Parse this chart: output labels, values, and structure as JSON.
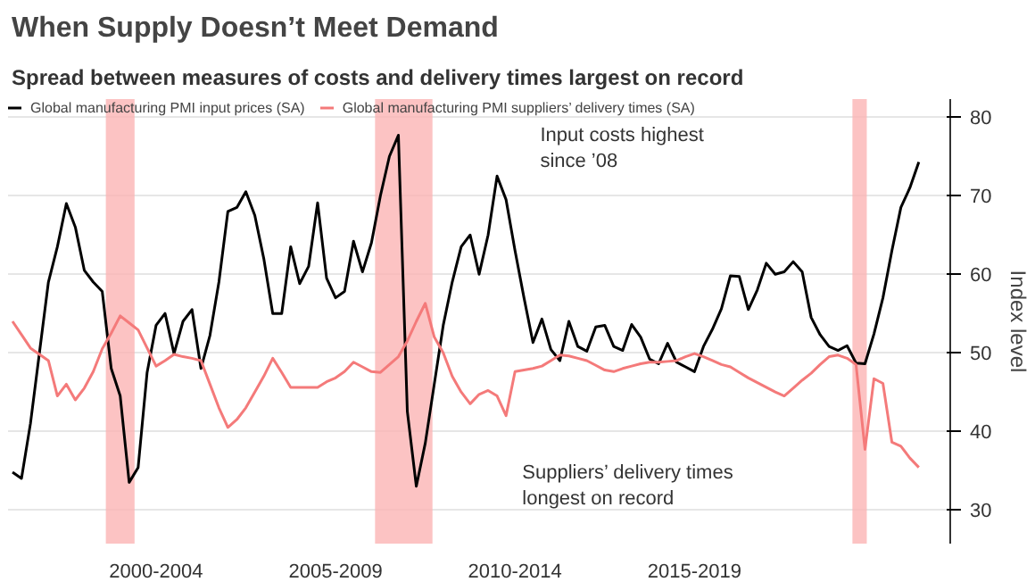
{
  "chart_data": {
    "type": "line",
    "title": "When Supply Doesn’t Meet Demand",
    "subtitle": "Spread between measures of costs and delivery times largest on record",
    "ylabel": "Index level",
    "categories": [
      null,
      null,
      null,
      null,
      null,
      null,
      null,
      null,
      null,
      null,
      null,
      null,
      null,
      null,
      null,
      null,
      "2000-2004",
      null,
      null,
      null,
      null,
      null,
      null,
      null,
      null,
      null,
      null,
      null,
      null,
      null,
      null,
      null,
      null,
      null,
      null,
      null,
      "2005-2009",
      null,
      null,
      null,
      null,
      null,
      null,
      null,
      null,
      null,
      null,
      null,
      null,
      null,
      null,
      null,
      null,
      null,
      null,
      null,
      "2010-2014",
      null,
      null,
      null,
      null,
      null,
      null,
      null,
      null,
      null,
      null,
      null,
      null,
      null,
      null,
      null,
      null,
      null,
      null,
      null,
      "2015-2019",
      null,
      null,
      null,
      null,
      null,
      null,
      null,
      null,
      null,
      null,
      null,
      null,
      null,
      null,
      null,
      null,
      null,
      null,
      null,
      null,
      null,
      null,
      null,
      null,
      null
    ],
    "ylim": [
      25.7,
      82.3
    ],
    "yticks": [
      30,
      40,
      50,
      60,
      70,
      80
    ],
    "grid": "y",
    "legend": "top left",
    "series": [
      {
        "name": "Global manufacturing PMI input prices (SA)",
        "color": "#000000",
        "values": [
          34.8,
          34,
          41,
          50,
          59,
          63.5,
          69,
          66,
          60.5,
          59,
          57.8,
          48,
          44.5,
          33.5,
          35.4,
          47.5,
          53.5,
          55,
          49.9,
          54,
          55.5,
          48,
          52.2,
          59,
          68,
          68.5,
          70.5,
          67.5,
          62,
          55,
          55,
          63.5,
          58.8,
          61,
          69.1,
          59.5,
          57,
          57.8,
          64.2,
          60.3,
          64,
          70,
          75,
          77.7,
          42.5,
          33,
          38.5,
          46,
          53.5,
          59,
          63.5,
          65,
          60,
          65,
          72.5,
          69.5,
          63,
          57,
          51.3,
          54.3,
          50.4,
          49,
          54,
          50.8,
          50.2,
          53.3,
          53.5,
          50.8,
          50.3,
          53.6,
          52,
          49.2,
          48.6,
          51.2,
          48.8,
          48.2,
          47.6,
          50.8,
          53,
          55.6,
          59.8,
          59.7,
          55.5,
          58,
          61.4,
          60,
          60.3,
          61.6,
          60.3,
          54.5,
          52.3,
          50.8,
          50.3,
          50.9,
          48.7,
          48.6,
          52.4,
          57,
          63,
          68.5,
          71,
          74.3
        ]
      },
      {
        "name": "Global manufacturing PMI suppliers’ delivery times (SA)",
        "color": "#f47a7a",
        "values": [
          54,
          52.3,
          50.6,
          49.8,
          49,
          44.5,
          46,
          44,
          45.5,
          47.6,
          50.5,
          52.5,
          54.7,
          53.8,
          52.9,
          50.6,
          48.3,
          49,
          49.8,
          49.5,
          49.3,
          49,
          46,
          43,
          40.5,
          41.5,
          43,
          45,
          47,
          49.3,
          47.5,
          45.6,
          45.6,
          45.6,
          45.6,
          46.3,
          46.8,
          47.6,
          48.8,
          48.2,
          47.6,
          47.5,
          48.5,
          49.5,
          51.5,
          54,
          56.3,
          52,
          50,
          47,
          45,
          43.5,
          44.7,
          45.2,
          44.5,
          42,
          47.6,
          47.8,
          48,
          48.3,
          49,
          49.7,
          49.6,
          49.3,
          49,
          48.4,
          47.8,
          47.6,
          48,
          48.3,
          48.6,
          48.8,
          48.8,
          48.9,
          49,
          49.5,
          49.9,
          49.5,
          49,
          48.5,
          48.2,
          47.5,
          46.8,
          46.2,
          45.6,
          45,
          44.5,
          45.5,
          46.5,
          47.4,
          48.5,
          49.5,
          49.7,
          49.3,
          48.5,
          37.7,
          46.7,
          46.1,
          38.6,
          38.1,
          36.6,
          35.4
        ]
      }
    ],
    "annotations": [
      "Input costs highest\nsince ’08",
      "Suppliers’ delivery times\nlongest on record"
    ]
  }
}
